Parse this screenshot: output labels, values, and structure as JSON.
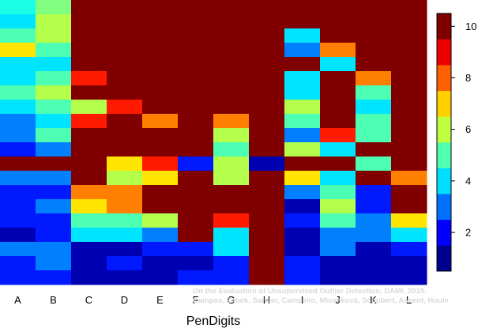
{
  "chart_data": {
    "type": "heatmap",
    "title": "",
    "xlabel": "PenDigits",
    "ylabel": "",
    "categories": [
      "A",
      "B",
      "C",
      "D",
      "E",
      "F",
      "G",
      "H",
      "I",
      "J",
      "K",
      "L"
    ],
    "zlim": [
      0.5,
      10.5
    ],
    "colorbar_ticks": [
      2,
      4,
      6,
      8,
      10
    ],
    "values": [
      [
        4.5,
        5.5,
        10.5,
        10.5,
        10.5,
        10.5,
        10.5,
        10.5,
        10.5,
        10.5,
        10.5,
        10.5
      ],
      [
        4,
        6,
        10.5,
        10.5,
        10.5,
        10.5,
        10.5,
        10.5,
        10.5,
        10.5,
        10.5,
        10.5
      ],
      [
        5,
        6,
        10.5,
        10.5,
        10.5,
        10.5,
        10.5,
        10.5,
        4,
        10.5,
        10.5,
        10.5
      ],
      [
        7,
        5,
        10.5,
        10.5,
        10.5,
        10.5,
        10.5,
        10.5,
        3,
        8,
        10.5,
        10.5
      ],
      [
        4,
        4,
        10.5,
        10.5,
        10.5,
        10.5,
        10.5,
        10.5,
        10.5,
        4,
        10.5,
        10.5
      ],
      [
        4,
        5,
        9,
        10.5,
        10.5,
        10.5,
        10.5,
        10.5,
        4,
        10.5,
        8,
        10.5
      ],
      [
        5,
        6,
        10.5,
        10.5,
        10.5,
        10.5,
        10.5,
        10.5,
        4,
        10.5,
        5,
        10.5
      ],
      [
        4,
        5,
        6,
        9,
        10.5,
        10.5,
        10.5,
        10.5,
        6,
        10.5,
        4,
        10.5
      ],
      [
        3,
        4,
        9,
        10.5,
        8,
        10.5,
        8,
        10.5,
        5,
        10.5,
        5,
        10.5
      ],
      [
        3,
        5,
        10.5,
        10.5,
        10.5,
        10.5,
        6,
        10.5,
        3,
        9,
        5,
        10.5
      ],
      [
        2,
        3,
        10.5,
        10.5,
        10.5,
        10.5,
        5,
        10.5,
        6,
        4,
        10.5,
        10.5
      ],
      [
        10.5,
        10.5,
        10.5,
        7,
        9,
        2,
        6,
        1,
        10.5,
        10.5,
        5,
        10.5
      ],
      [
        3,
        3,
        10.5,
        6,
        7,
        10.5,
        6,
        10.5,
        7,
        4,
        10.5,
        8
      ],
      [
        2,
        2,
        8,
        8,
        10.5,
        10.5,
        10.5,
        10.5,
        3,
        5,
        2,
        10.5
      ],
      [
        2,
        3,
        7,
        8,
        10.5,
        10.5,
        10.5,
        10.5,
        1,
        6,
        2,
        10.5
      ],
      [
        2,
        2,
        5,
        5,
        6,
        10.5,
        9,
        10.5,
        2,
        5,
        3,
        7
      ],
      [
        1,
        2,
        4,
        4,
        3,
        10.5,
        4,
        10.5,
        1,
        3,
        3,
        4
      ],
      [
        3,
        3,
        1,
        1,
        2,
        2,
        4,
        10.5,
        1,
        3,
        1,
        2
      ],
      [
        2,
        3,
        1,
        2,
        1,
        1,
        2,
        10.5,
        2,
        1,
        1,
        1
      ],
      [
        2,
        2,
        1,
        1,
        1,
        2,
        2,
        10.5,
        2,
        1,
        1,
        1
      ]
    ],
    "colorbar": {
      "colors": [
        "#00008F",
        "#0000FF",
        "#0070FF",
        "#00DFFF",
        "#50FFAF",
        "#BFFF40",
        "#FFCF00",
        "#FF6000",
        "#EF0000",
        "#800000"
      ],
      "levels": [
        1,
        2,
        3,
        4,
        5,
        6,
        7,
        8,
        9,
        10
      ]
    },
    "legend": "right"
  },
  "watermark": {
    "line1": "On the Evaluation of Unsupervised Outlier Detection, DAMI, 2015.",
    "line2": "Campos, Zimek, Sander, Campello, Micenková, Schubert, Assent, Houle"
  }
}
